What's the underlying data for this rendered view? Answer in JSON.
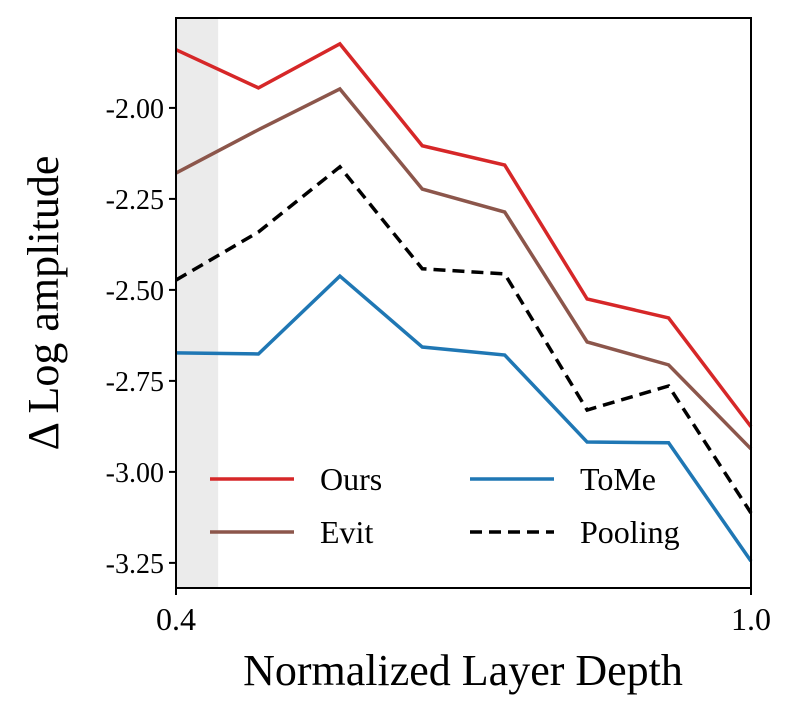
{
  "chart_data": {
    "type": "line",
    "title": "",
    "xlabel": "Normalized Layer Depth",
    "ylabel": "Δ Log amplitude",
    "xlim": [
      0.4,
      1.0
    ],
    "ylim": [
      -3.319,
      -1.753
    ],
    "xticks": [
      0.4,
      1.0
    ],
    "xtick_labels": [
      "0.4",
      "1.0"
    ],
    "yticks": [
      -2.0,
      -2.25,
      -2.5,
      -2.75,
      -3.0,
      -3.25
    ],
    "ytick_labels": [
      "-2.00",
      "-2.25",
      "-2.50",
      "-2.75",
      "-3.00",
      "-3.25"
    ],
    "grid": false,
    "shaded_region": {
      "x": [
        0.4,
        0.444
      ],
      "color": "#ebebeb"
    },
    "legend": {
      "placement": "lower-left",
      "columns": 2
    },
    "x": [
      0.4,
      0.486,
      0.571,
      0.657,
      0.743,
      0.829,
      0.914,
      1.0
    ],
    "series": [
      {
        "name": "Ours",
        "color": "#d62728",
        "dash": false,
        "values": [
          -1.84,
          -1.945,
          -1.824,
          -2.104,
          -2.157,
          -2.525,
          -2.577,
          -2.876
        ]
      },
      {
        "name": "Evit",
        "color": "#8c564b",
        "dash": false,
        "values": [
          -2.179,
          -2.06,
          -1.948,
          -2.223,
          -2.286,
          -2.643,
          -2.706,
          -2.937
        ]
      },
      {
        "name": "ToMe",
        "color": "#1f77b4",
        "dash": false,
        "values": [
          -2.673,
          -2.676,
          -2.462,
          -2.657,
          -2.679,
          -2.918,
          -2.92,
          -3.245
        ]
      },
      {
        "name": "Pooling",
        "color": "#000000",
        "dash": true,
        "values": [
          -2.473,
          -2.341,
          -2.162,
          -2.442,
          -2.456,
          -2.83,
          -2.764,
          -3.113
        ]
      }
    ]
  }
}
